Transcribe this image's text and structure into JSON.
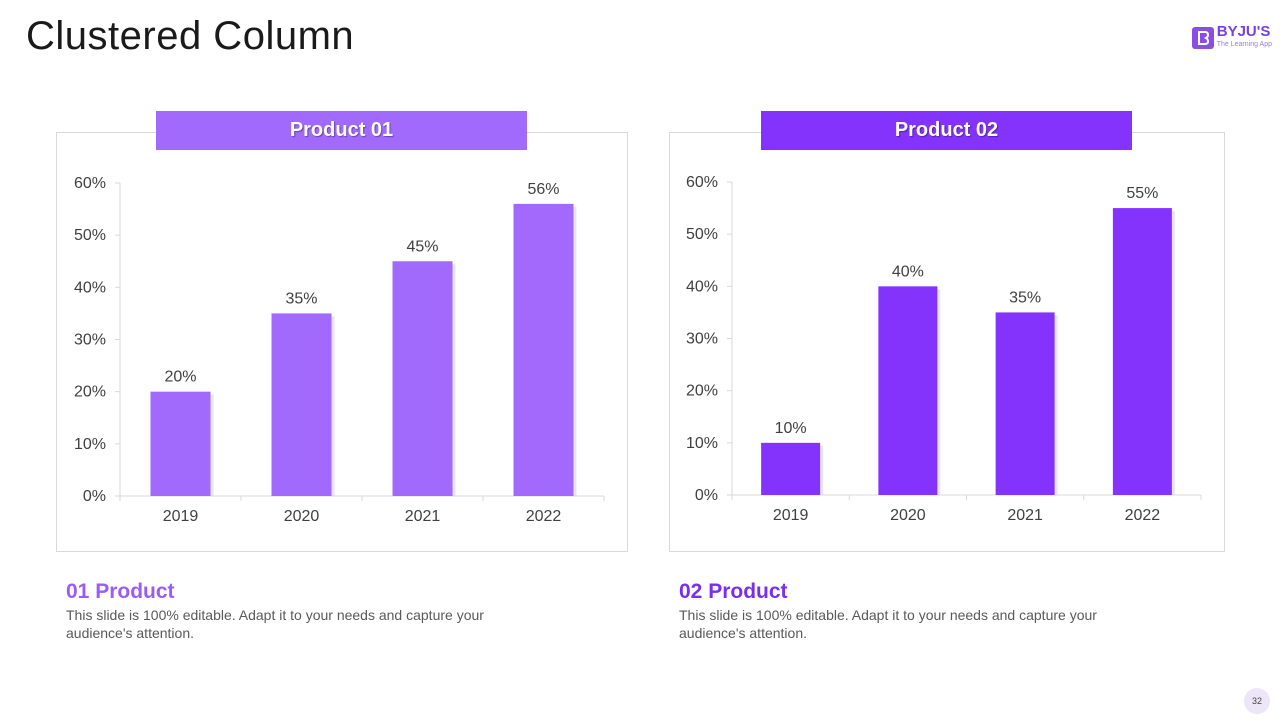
{
  "slide": {
    "title": "Clustered Column",
    "page_number": "32"
  },
  "logo": {
    "name": "BYJU'S",
    "tagline": "The Learning App",
    "icon": "byjus-logo-icon"
  },
  "colors": {
    "product1": "#a16afc",
    "product2": "#8333fb",
    "axis": "#d9d9d9",
    "text": "#404040"
  },
  "chart_data": [
    {
      "type": "bar",
      "title": "Product 01",
      "categories": [
        "2019",
        "2020",
        "2021",
        "2022"
      ],
      "values": [
        20,
        35,
        45,
        56
      ],
      "value_labels": [
        "20%",
        "35%",
        "45%",
        "56%"
      ],
      "ylim": [
        0,
        60
      ],
      "yticks": [
        0,
        10,
        20,
        30,
        40,
        50,
        60
      ],
      "ytick_labels": [
        "0%",
        "10%",
        "20%",
        "30%",
        "40%",
        "50%",
        "60%"
      ],
      "xlabel": "",
      "ylabel": "",
      "grid": false
    },
    {
      "type": "bar",
      "title": "Product 02",
      "categories": [
        "2019",
        "2020",
        "2021",
        "2022"
      ],
      "values": [
        10,
        40,
        35,
        55
      ],
      "value_labels": [
        "10%",
        "40%",
        "35%",
        "55%"
      ],
      "ylim": [
        0,
        60
      ],
      "yticks": [
        0,
        10,
        20,
        30,
        40,
        50,
        60
      ],
      "ytick_labels": [
        "0%",
        "10%",
        "20%",
        "30%",
        "40%",
        "50%",
        "60%"
      ],
      "xlabel": "",
      "ylabel": "",
      "grid": false
    }
  ],
  "descriptions": [
    {
      "heading": "01 Product",
      "body": "This slide is 100% editable.  Adapt it to your needs and capture your audience's attention."
    },
    {
      "heading": "02 Product",
      "body": "This slide is 100% editable.  Adapt it to your needs and capture your audience's attention."
    }
  ]
}
